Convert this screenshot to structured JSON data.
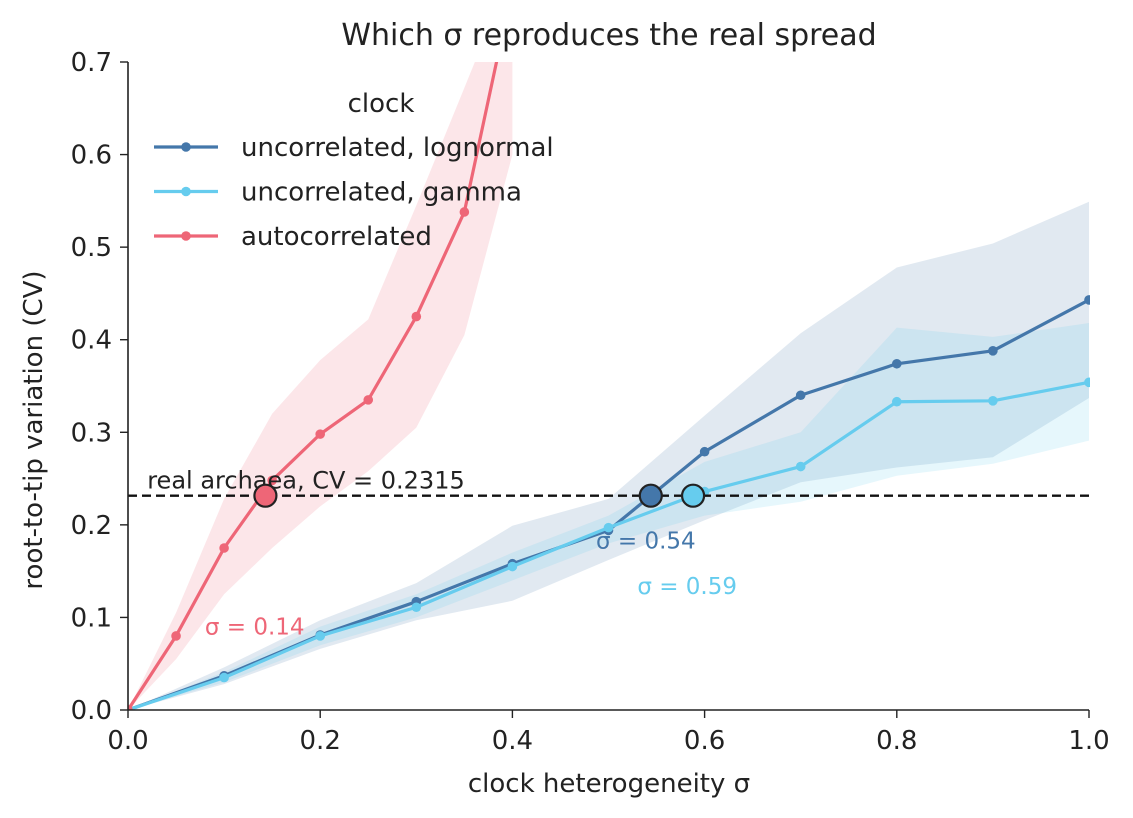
{
  "chart_data": {
    "type": "line",
    "title": "Which σ reproduces the real spread",
    "xlabel": "clock heterogeneity  σ",
    "ylabel": "root-to-tip variation  (CV)",
    "xlim": [
      0.0,
      1.0
    ],
    "ylim": [
      0.0,
      0.7
    ],
    "xticks": [
      "0.0",
      "0.2",
      "0.4",
      "0.6",
      "0.8",
      "1.0"
    ],
    "yticks": [
      "0.0",
      "0.1",
      "0.2",
      "0.3",
      "0.4",
      "0.5",
      "0.6",
      "0.7"
    ],
    "legend_title": "clock",
    "legend_position": "top-left",
    "grid": false,
    "series": [
      {
        "name": "uncorrelated, lognormal",
        "color": "#4477AA",
        "x": [
          0.0,
          0.1,
          0.2,
          0.3,
          0.4,
          0.5,
          0.6,
          0.7,
          0.8,
          0.9,
          1.0
        ],
        "y": [
          0.0,
          0.037,
          0.081,
          0.117,
          0.158,
          0.194,
          0.279,
          0.34,
          0.374,
          0.388,
          0.443
        ],
        "band_low": [
          0.0,
          0.028,
          0.066,
          0.097,
          0.118,
          0.162,
          0.205,
          0.246,
          0.262,
          0.273,
          0.337
        ],
        "band_high": [
          0.0,
          0.046,
          0.097,
          0.137,
          0.199,
          0.228,
          0.318,
          0.407,
          0.478,
          0.504,
          0.549
        ]
      },
      {
        "name": "uncorrelated, gamma",
        "color": "#66CCEE",
        "x": [
          0.0,
          0.1,
          0.2,
          0.3,
          0.4,
          0.5,
          0.6,
          0.7,
          0.8,
          0.9,
          1.0
        ],
        "y": [
          0.0,
          0.035,
          0.08,
          0.111,
          0.155,
          0.197,
          0.236,
          0.263,
          0.333,
          0.334,
          0.354
        ],
        "band_low": [
          0.0,
          0.03,
          0.07,
          0.1,
          0.14,
          0.18,
          0.21,
          0.225,
          0.253,
          0.266,
          0.291
        ],
        "band_high": [
          0.0,
          0.041,
          0.09,
          0.125,
          0.17,
          0.21,
          0.268,
          0.3,
          0.413,
          0.403,
          0.418
        ]
      },
      {
        "name": "autocorrelated",
        "color": "#EE6677",
        "x": [
          0.0,
          0.05,
          0.1,
          0.15,
          0.2,
          0.25,
          0.3,
          0.35,
          0.4
        ],
        "y": [
          0.0,
          0.08,
          0.175,
          0.248,
          0.298,
          0.335,
          0.425,
          0.538,
          0.78
        ],
        "band_low": [
          0.0,
          0.055,
          0.125,
          0.175,
          0.22,
          0.258,
          0.305,
          0.405,
          0.6
        ],
        "band_high": [
          0.0,
          0.105,
          0.228,
          0.32,
          0.378,
          0.422,
          0.545,
          0.672,
          0.8
        ]
      }
    ],
    "reference_line": {
      "y": 0.2315,
      "label": "real archaea, CV = 0.2315",
      "style": "dashed",
      "color": "#111111"
    },
    "crossings": [
      {
        "series": "autocorrelated",
        "x": 0.143,
        "y": 0.2315,
        "label": "σ = 0.14",
        "color": "#EE6677",
        "label_x": 0.08,
        "label_y": 0.09
      },
      {
        "series": "uncorrelated, lognormal",
        "x": 0.544,
        "y": 0.2315,
        "label": "σ = 0.54",
        "color": "#4477AA",
        "label_x": 0.487,
        "label_y": 0.183
      },
      {
        "series": "uncorrelated, gamma",
        "x": 0.588,
        "y": 0.2315,
        "label": "σ = 0.59",
        "color": "#66CCEE",
        "label_x": 0.53,
        "label_y": 0.134
      }
    ]
  }
}
